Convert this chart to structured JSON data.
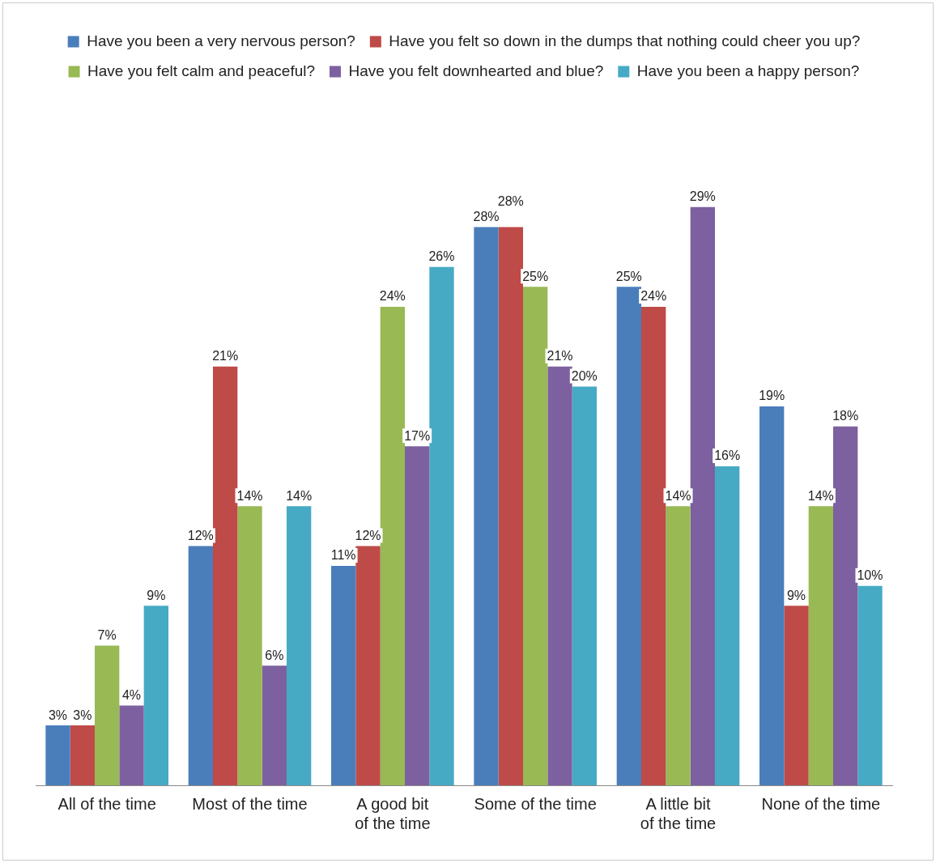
{
  "chart_data": {
    "type": "bar",
    "categories": [
      "All of the time",
      "Most of the time",
      "A good bit of the time",
      "Some of the time",
      "A little bit of the time",
      "None of the time"
    ],
    "series": [
      {
        "name": "Have you been a very nervous person?",
        "color": "#4a7ebb",
        "values": [
          3,
          12,
          11,
          28,
          25,
          19
        ],
        "value_labels": [
          "3%",
          "12%",
          "11%",
          "28%",
          "25%",
          "19%"
        ]
      },
      {
        "name": "Have you felt so down in the dumps that nothing could cheer you up?",
        "color": "#be4b48",
        "values": [
          3,
          21,
          12,
          28,
          24,
          9
        ],
        "value_labels": [
          "3%",
          "21%",
          "12%",
          "28%",
          "24%",
          "9%"
        ]
      },
      {
        "name": "Have you felt calm and peaceful?",
        "color": "#98b954",
        "values": [
          7,
          14,
          24,
          25,
          14,
          14
        ],
        "value_labels": [
          "7%",
          "14%",
          "24%",
          "25%",
          "14%",
          "14%"
        ]
      },
      {
        "name": "Have you felt downhearted and blue?",
        "color": "#7d60a0",
        "values": [
          4,
          6,
          17,
          21,
          29,
          18
        ],
        "value_labels": [
          "4%",
          "6%",
          "17%",
          "21%",
          "29%",
          "18%"
        ]
      },
      {
        "name": "Have you been a happy person?",
        "color": "#46aac5",
        "values": [
          9,
          14,
          26,
          20,
          16,
          10
        ],
        "value_labels": [
          "9%",
          "14%",
          "26%",
          "20%",
          "16%",
          "10%"
        ]
      }
    ],
    "grid": false,
    "legend": "top",
    "tick_labels": "x"
  }
}
